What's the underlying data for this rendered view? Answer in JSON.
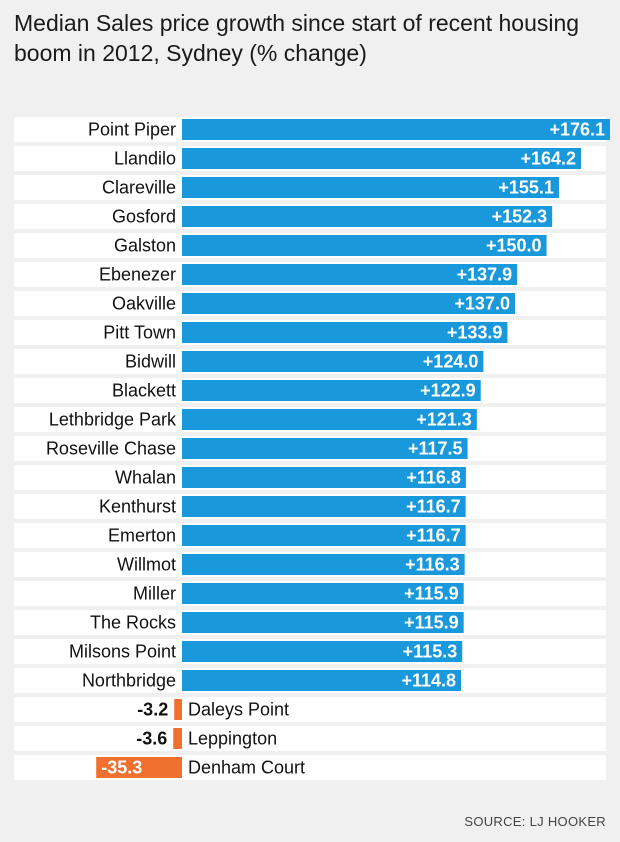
{
  "chart_data": {
    "type": "bar",
    "orientation": "horizontal",
    "title": "Median Sales price growth since start of recent housing boom in 2012, Sydney (% change)",
    "source": "SOURCE: LJ HOOKER",
    "categories": [
      "Point Piper",
      "Llandilo",
      "Clareville",
      "Gosford",
      "Galston",
      "Ebenezer",
      "Oakville",
      "Pitt Town",
      "Bidwill",
      "Blackett",
      "Lethbridge Park",
      "Roseville Chase",
      "Whalan",
      "Kenthurst",
      "Emerton",
      "Willmot",
      "Miller",
      "The Rocks",
      "Milsons Point",
      "Northbridge",
      "Daleys Point",
      "Leppington",
      "Denham Court"
    ],
    "values": [
      176.1,
      164.2,
      155.1,
      152.3,
      150.0,
      137.9,
      137.0,
      133.9,
      124.0,
      122.9,
      121.3,
      117.5,
      116.8,
      116.7,
      116.7,
      116.3,
      115.9,
      115.9,
      115.3,
      114.8,
      -3.2,
      -3.6,
      -35.3
    ],
    "labels": [
      "+176.1",
      "+164.2",
      "+155.1",
      "+152.3",
      "+150.0",
      "+137.9",
      "+137.0",
      "+133.9",
      "+124.0",
      "+122.9",
      "+121.3",
      "+117.5",
      "+116.8",
      "+116.7",
      "+116.7",
      "+116.3",
      "+115.9",
      "+115.9",
      "+115.3",
      "+114.8",
      "-3.2",
      "-3.6",
      "-35.3"
    ],
    "positive_color": "#1a98dc",
    "negative_color": "#f07030"
  }
}
